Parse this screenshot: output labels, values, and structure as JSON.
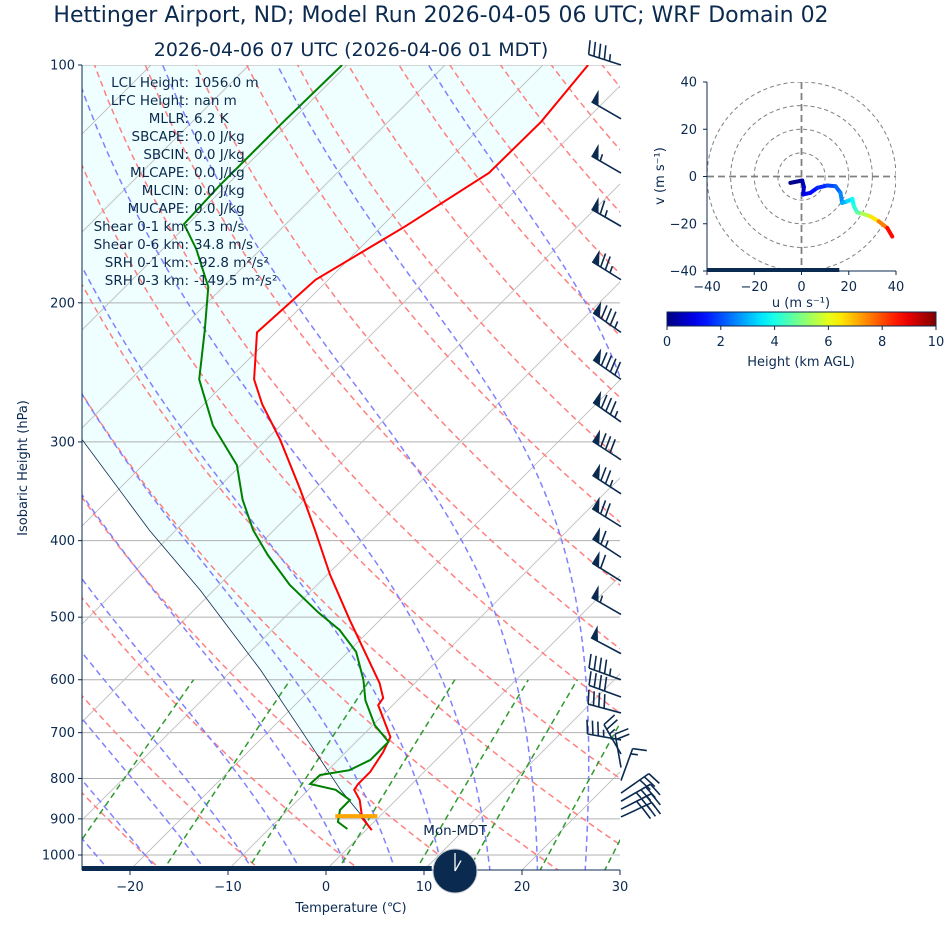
{
  "title": "Hettinger Airport, ND; Model Run 2026-04-05 06 UTC; WRF Domain 02",
  "subtitle": "2026-04-06 07 UTC  (2026-04-06 01 MDT)",
  "clock": {
    "label": "Mon-MDT",
    "hour": 1,
    "minute": 0
  },
  "timeline_progress_fraction": 0.65,
  "indices": [
    {
      "label": "LCL Height:",
      "value": "1056.0 m"
    },
    {
      "label": "LFC Height:",
      "value": "nan m"
    },
    {
      "label": "MLLR:",
      "value": "6.2 K"
    },
    {
      "label": "SBCAPE:",
      "value": "0.0 J/kg"
    },
    {
      "label": "SBCIN:",
      "value": "0.0 J/kg"
    },
    {
      "label": "MLCAPE:",
      "value": "0.0 J/kg"
    },
    {
      "label": "MLCIN:",
      "value": "0.0 J/kg"
    },
    {
      "label": "MUCAPE:",
      "value": "0.0 J/kg"
    },
    {
      "label": "Shear 0-1 km:",
      "value": "5.3 m/s"
    },
    {
      "label": "Shear 0-6 km:",
      "value": "34.8 m/s"
    },
    {
      "label": "SRH 0-1 km:",
      "value": "-92.8 m²/s²"
    },
    {
      "label": "SRH 0-3 km:",
      "value": "-149.5 m²/s²"
    }
  ],
  "colors": {
    "text": "#0b2a4f",
    "temperature": "#ff0000",
    "dewpoint": "#008000",
    "parcel": "#0b2a4f",
    "cin_shading": "#effefe",
    "dry_adiabats": "#ff8080",
    "moist_adiabats": "#8080ff",
    "mixing_ratio": "#2e9a2e",
    "lcl_marker": "#ffa500",
    "barbs": "#0b2a4f"
  },
  "chart_data": [
    {
      "type": "line",
      "kind": "skew-T log-p",
      "xlabel": "Temperature (℃)",
      "ylabel": "Isobaric Height (hPa)",
      "xlim": [
        -25,
        30
      ],
      "ylim": [
        1045,
        100
      ],
      "y_scale": "log",
      "grid": true,
      "xticks": [
        "−20",
        "−10",
        "0",
        "10",
        "20",
        "30"
      ],
      "xtick_values": [
        -20,
        -10,
        0,
        10,
        20,
        30
      ],
      "yticks": [
        "100",
        "200",
        "300",
        "400",
        "500",
        "600",
        "700",
        "800",
        "900",
        "1000"
      ],
      "ytick_values": [
        100,
        200,
        300,
        400,
        500,
        600,
        700,
        800,
        900,
        1000
      ],
      "temperature": {
        "pressure_hPa": [
          930,
          898,
          852,
          827,
          813,
          785,
          741,
          709,
          646,
          633,
          606,
          504,
          442,
          388,
          345,
          298,
          269,
          250,
          218,
          187,
          160,
          137,
          118,
          100
        ],
        "temperature_C": [
          0.6,
          -1.6,
          -3.7,
          -5.3,
          -5.5,
          -5.5,
          -6.2,
          -7.0,
          -11.5,
          -11.7,
          -13.6,
          -23.1,
          -29.7,
          -35.8,
          -41.4,
          -48.6,
          -54.0,
          -57.4,
          -61.9,
          -61.3,
          -57.6,
          -54.5,
          -54.4,
          -55.4
        ]
      },
      "dewpoint": {
        "pressure_hPa": [
          927,
          908,
          877,
          852,
          827,
          813,
          792,
          781,
          758,
          719,
          685,
          637,
          600,
          553,
          519,
          493,
          455,
          417,
          388,
          355,
          321,
          286,
          250,
          217,
          191,
          171,
          159,
          142,
          118,
          100
        ],
        "dewpoint_C": [
          -2.0,
          -3.7,
          -4.7,
          -4.7,
          -7.2,
          -10.4,
          -10.3,
          -7.8,
          -6.7,
          -6.7,
          -9.8,
          -13.3,
          -15.6,
          -19.2,
          -23.1,
          -27.1,
          -32.8,
          -38.1,
          -42.1,
          -46.3,
          -50.4,
          -56.9,
          -63.0,
          -67.4,
          -71.5,
          -76.6,
          -80.4,
          -80.7,
          -80.7,
          -80.5
        ]
      },
      "parcel_profile": {
        "pressure_hPa": [
          930,
          903,
          827,
          694,
          583,
          462,
          388,
          298,
          250,
          200,
          150,
          100
        ],
        "temperature_C": [
          0.6,
          -1.1,
          -6.7,
          -16.9,
          -27.1,
          -41.4,
          -52.7,
          -68.8,
          -78,
          -90,
          -104,
          -125
        ]
      },
      "lcl_marker_hPa": 893,
      "wind_barbs": [
        {
          "pressure_hPa": 100,
          "direction_deg": 288,
          "speed_kt": 45
        },
        {
          "pressure_hPa": 117,
          "direction_deg": 300,
          "speed_kt": 50
        },
        {
          "pressure_hPa": 137,
          "direction_deg": 300,
          "speed_kt": 55
        },
        {
          "pressure_hPa": 160,
          "direction_deg": 300,
          "speed_kt": 65
        },
        {
          "pressure_hPa": 187,
          "direction_deg": 302,
          "speed_kt": 75
        },
        {
          "pressure_hPa": 218,
          "direction_deg": 305,
          "speed_kt": 85
        },
        {
          "pressure_hPa": 250,
          "direction_deg": 305,
          "speed_kt": 90
        },
        {
          "pressure_hPa": 283,
          "direction_deg": 305,
          "speed_kt": 85
        },
        {
          "pressure_hPa": 316,
          "direction_deg": 303,
          "speed_kt": 80
        },
        {
          "pressure_hPa": 349,
          "direction_deg": 303,
          "speed_kt": 75
        },
        {
          "pressure_hPa": 384,
          "direction_deg": 302,
          "speed_kt": 70
        },
        {
          "pressure_hPa": 420,
          "direction_deg": 303,
          "speed_kt": 65
        },
        {
          "pressure_hPa": 450,
          "direction_deg": 302,
          "speed_kt": 60
        },
        {
          "pressure_hPa": 496,
          "direction_deg": 300,
          "speed_kt": 55
        },
        {
          "pressure_hPa": 556,
          "direction_deg": 298,
          "speed_kt": 50
        },
        {
          "pressure_hPa": 600,
          "direction_deg": 290,
          "speed_kt": 45
        },
        {
          "pressure_hPa": 631,
          "direction_deg": 290,
          "speed_kt": 40
        },
        {
          "pressure_hPa": 661,
          "direction_deg": 285,
          "speed_kt": 40
        },
        {
          "pressure_hPa": 715,
          "direction_deg": 280,
          "speed_kt": 35
        },
        {
          "pressure_hPa": 745,
          "direction_deg": 330,
          "speed_kt": 25
        },
        {
          "pressure_hPa": 775,
          "direction_deg": 350,
          "speed_kt": 20
        },
        {
          "pressure_hPa": 805,
          "direction_deg": 20,
          "speed_kt": 15
        },
        {
          "pressure_hPa": 835,
          "direction_deg": 55,
          "speed_kt": 30
        },
        {
          "pressure_hPa": 855,
          "direction_deg": 60,
          "speed_kt": 35
        },
        {
          "pressure_hPa": 875,
          "direction_deg": 63,
          "speed_kt": 35
        },
        {
          "pressure_hPa": 895,
          "direction_deg": 65,
          "speed_kt": 30
        }
      ]
    },
    {
      "type": "line",
      "kind": "hodograph",
      "xlabel": "u (m s⁻¹)",
      "ylabel": "v (m s⁻¹)",
      "xlim": [
        -40,
        40
      ],
      "ylim": [
        -40,
        40
      ],
      "xticks": [
        "−40",
        "−20",
        "0",
        "20",
        "40"
      ],
      "yticks": [
        "40",
        "20",
        "0",
        "−20",
        "−40"
      ],
      "range_rings_ms": [
        10,
        20,
        30,
        40
      ],
      "progress_fraction": 0.7,
      "u": [
        -4.7,
        0.3,
        1.0,
        0.7,
        3.8,
        6.7,
        11.0,
        14.4,
        16.5,
        17.2,
        19.3,
        21.5,
        22.2,
        23.6,
        25.7,
        29.2,
        32.7,
        36.3,
        38.4
      ],
      "v": [
        -2.7,
        -1.7,
        -4.4,
        -7.6,
        -6.9,
        -4.8,
        -3.8,
        -4.1,
        -6.9,
        -11.2,
        -10.5,
        -9.5,
        -12.6,
        -15.2,
        -15.7,
        -16.9,
        -19.0,
        -21.8,
        -25.4
      ],
      "height_km": [
        0,
        0.3,
        0.6,
        0.9,
        1.2,
        1.5,
        1.8,
        2.1,
        2.4,
        2.8,
        3.2,
        3.6,
        4.0,
        4.4,
        5.0,
        6.0,
        7.0,
        8.0,
        9.3
      ],
      "colorbar": {
        "label": "Height (km AGL)",
        "colormap": "jet",
        "range": [
          0,
          10
        ],
        "ticks": [
          "0",
          "2",
          "4",
          "6",
          "8",
          "10"
        ]
      }
    }
  ]
}
